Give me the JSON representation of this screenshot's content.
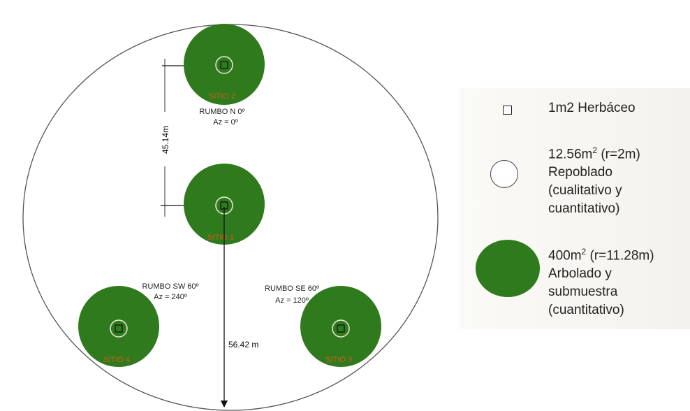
{
  "colors": {
    "plot_fill": "#2f7a1c",
    "site_label": "#c8601f",
    "outline": "#555555"
  },
  "diagram": {
    "sites": [
      {
        "label": "SITIO 2"
      },
      {
        "label": "SITIO 1"
      },
      {
        "label": "SITIO 4"
      },
      {
        "label": "SITIO 3"
      }
    ],
    "rumbo_n": {
      "line1": "RUMBO N 0º",
      "line2": "Az = 0º"
    },
    "rumbo_sw": {
      "line1": "RUMBO SW 60º",
      "line2": "Az = 240º"
    },
    "rumbo_se": {
      "line1": "RUMBO SE 60º",
      "line2": "Az = 120º"
    },
    "distance_vertical": "45.14m",
    "distance_south": "56.42 m"
  },
  "legend": {
    "herbaceo": {
      "icon": "square-icon",
      "line1": "1m2 Herbáceo"
    },
    "repoblado": {
      "icon": "small-circle-icon",
      "area": "12.56m",
      "sup": "2",
      "radius": " (r=2m)",
      "line2": "Repoblado",
      "line3": "(cualitativo y",
      "line4": "cuantitativo)"
    },
    "arbolado": {
      "icon": "large-circle-icon",
      "area": "400m",
      "sup": "2",
      "radius": " (r=11.28m)",
      "line2": "Arbolado y",
      "line3": "submuestra",
      "line4": "(cuantitativo)"
    }
  }
}
